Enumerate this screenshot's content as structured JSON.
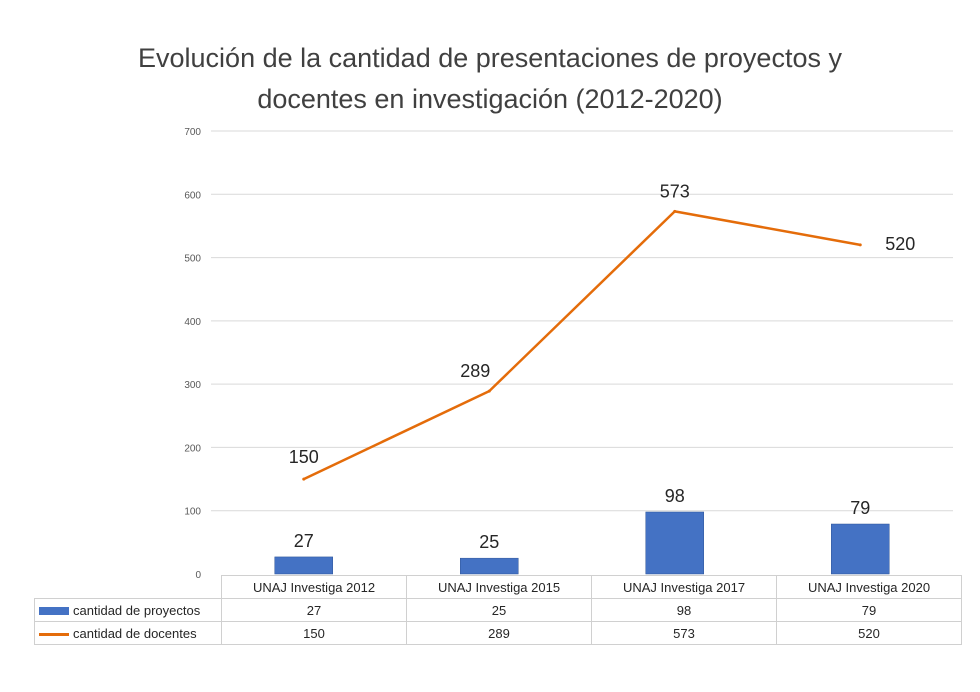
{
  "chart_data": {
    "type": "bar",
    "title": "Evolución de la cantidad de presentaciones de proyectos y\ndocentes en investigación (2012-2020)",
    "categories": [
      "UNAJ Investiga 2012",
      "UNAJ Investiga 2015",
      "UNAJ Investiga 2017",
      "UNAJ Investiga 2020"
    ],
    "ylim": [
      0,
      700
    ],
    "yticks": [
      0,
      100,
      200,
      300,
      400,
      500,
      600,
      700
    ],
    "grid": true,
    "legend": "data-table",
    "series": [
      {
        "name": "cantidad de proyectos",
        "kind": "bar",
        "color": "#4472c4",
        "values": [
          27,
          25,
          98,
          79
        ]
      },
      {
        "name": "cantidad de docentes",
        "kind": "line",
        "color": "#e46c0a",
        "values": [
          150,
          289,
          573,
          520
        ]
      }
    ]
  }
}
